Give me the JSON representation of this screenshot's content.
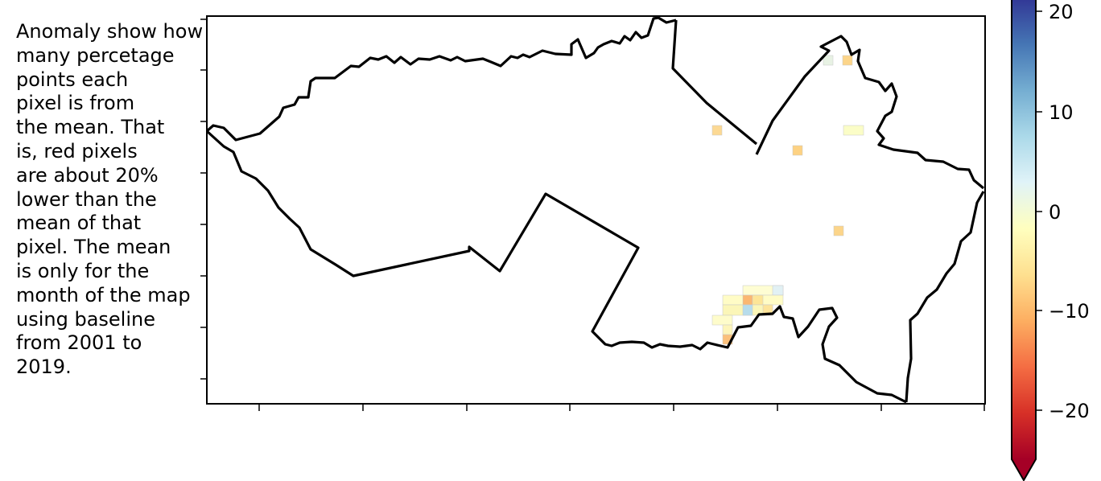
{
  "annotation": {
    "lines": [
      "Anomaly show how",
      "many percetage",
      "points each",
      "pixel is from",
      "the mean. That",
      "is, red pixels",
      "are about 20%",
      "lower than the",
      "mean of that",
      "pixel. The mean",
      "is only for the",
      "month of the map",
      "using baseline",
      "from 2001 to",
      "2019."
    ]
  },
  "map": {
    "boundary_color": "#000000",
    "axis_ticks": "unlabeled"
  },
  "colorbar": {
    "colormap": "RdYlBu",
    "range": [
      -25,
      22
    ],
    "extend": "min",
    "ticks": [
      {
        "value": 20,
        "label": "20"
      },
      {
        "value": 10,
        "label": "10"
      },
      {
        "value": 0,
        "label": "0"
      },
      {
        "value": -10,
        "label": "−10"
      },
      {
        "value": -20,
        "label": "−20"
      }
    ]
  },
  "anomaly_pixels_color_hex": {
    "top_left_pixel": "#e8f2e4",
    "top_right_pixel": "#fcd58a",
    "west_pixel": "#fcd994",
    "center_pixel": "#fdd283",
    "east_pixels": "#fbfdc7",
    "south_east_pixel": "#fcd58a",
    "south_cluster_mixed": "#fefdd3"
  }
}
